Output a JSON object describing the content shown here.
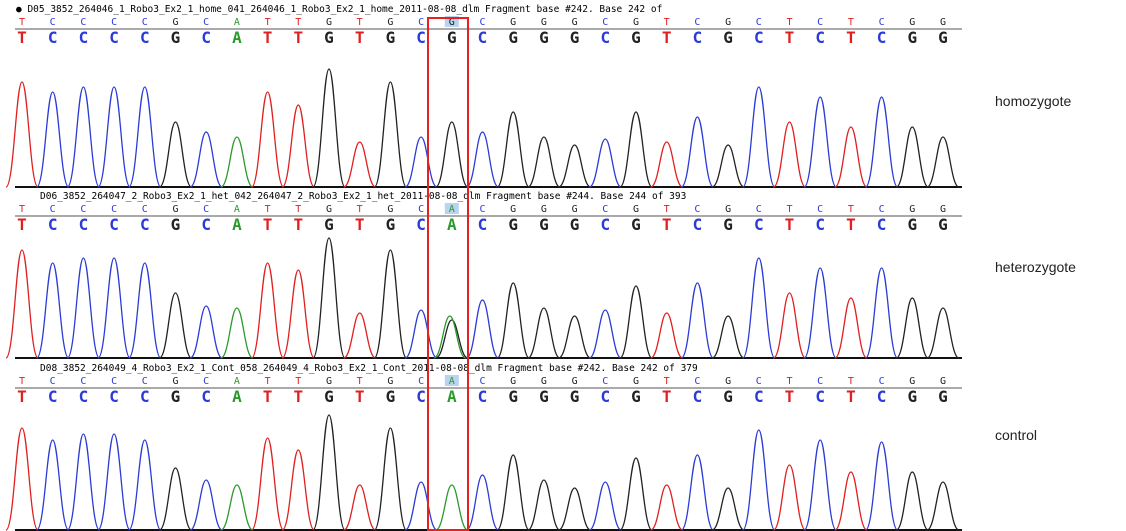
{
  "panels": [
    {
      "header": "● D05_3852_264046_1_Robo3_Ex2_1_home_041_264046_1_Robo3_Ex2_1_home_2011-08-08_dlm Fragment base #242. Base 242 of",
      "bases": [
        "T",
        "C",
        "C",
        "C",
        "C",
        "G",
        "C",
        "A",
        "T",
        "T",
        "G",
        "T",
        "G",
        "C",
        "G",
        "C",
        "G",
        "G",
        "G",
        "C",
        "G",
        "T",
        "C",
        "G",
        "C",
        "T",
        "C",
        "T",
        "C",
        "G",
        "G"
      ],
      "label": "homozygote"
    },
    {
      "header": "D06_3852_264047_2_Robo3_Ex2_1_het_042_264047_2_Robo3_Ex2_1_het_2011-08-08_dlm Fragment base #244. Base 244 of 393",
      "bases": [
        "T",
        "C",
        "C",
        "C",
        "C",
        "G",
        "C",
        "A",
        "T",
        "T",
        "G",
        "T",
        "G",
        "C",
        "A",
        "C",
        "G",
        "G",
        "G",
        "C",
        "G",
        "T",
        "C",
        "G",
        "C",
        "T",
        "C",
        "T",
        "C",
        "G",
        "G"
      ],
      "label": "heterozygote"
    },
    {
      "header": "D08_3852_264049_4_Robo3_Ex2_1_Cont_058_264049_4_Robo3_Ex2_1_Cont_2011-08-08_dlm Fragment base #242. Base 242 of 379",
      "bases": [
        "T",
        "C",
        "C",
        "C",
        "C",
        "G",
        "C",
        "A",
        "T",
        "T",
        "G",
        "T",
        "G",
        "C",
        "A",
        "C",
        "G",
        "G",
        "G",
        "C",
        "G",
        "T",
        "C",
        "G",
        "C",
        "T",
        "C",
        "T",
        "C",
        "G",
        "G"
      ],
      "label": "control"
    }
  ]
}
